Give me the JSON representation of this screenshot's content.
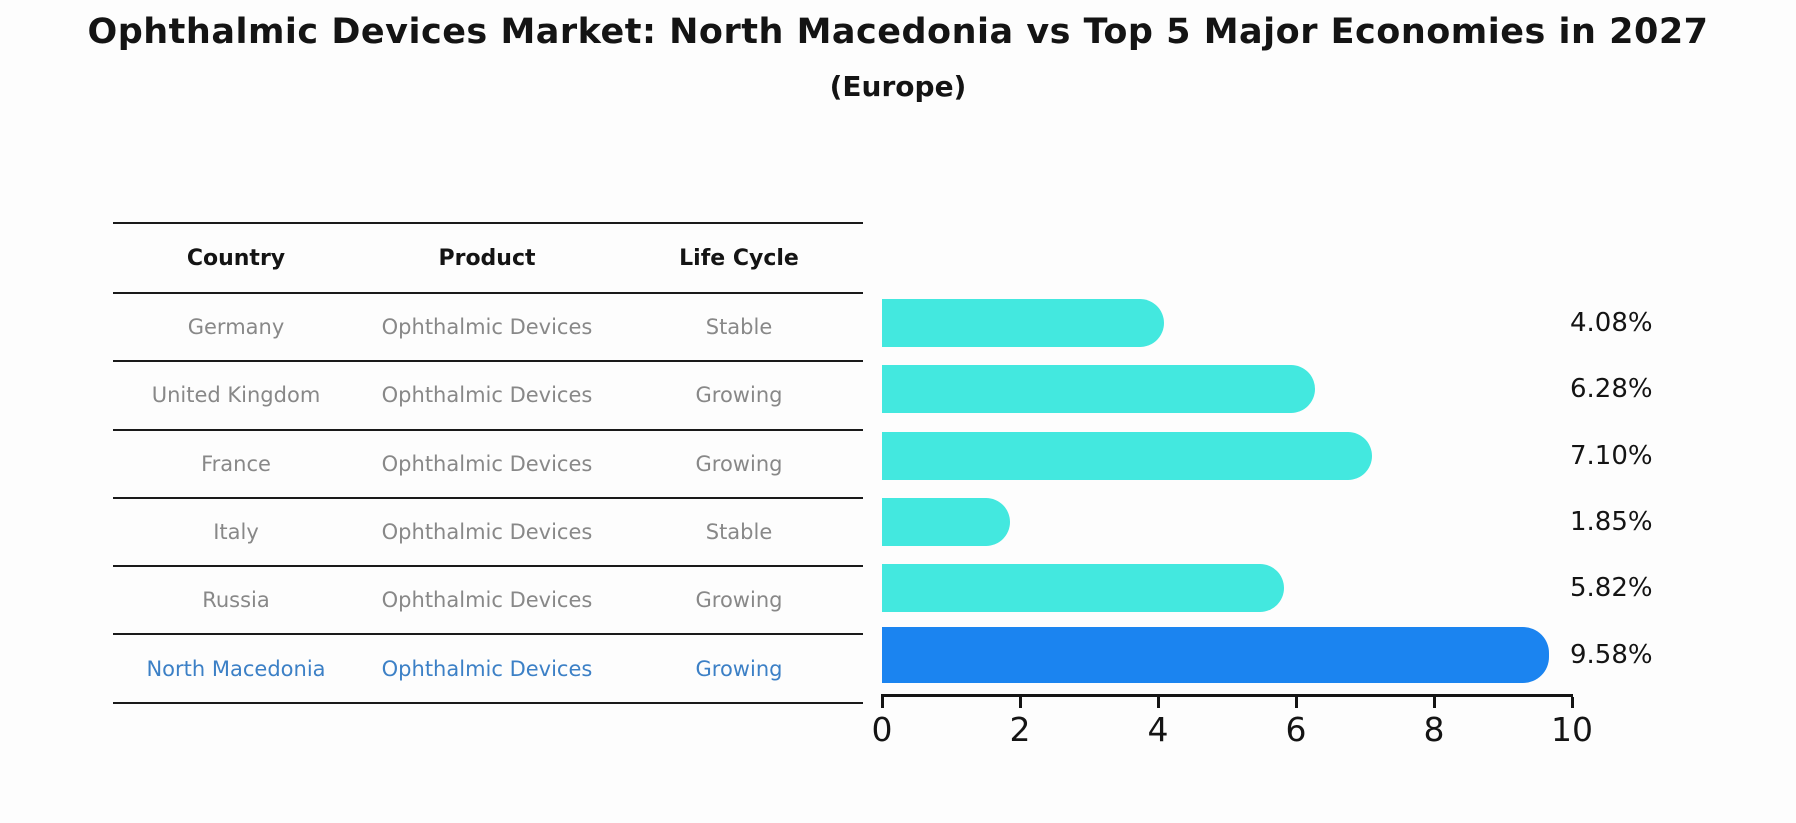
{
  "chart_data": {
    "type": "bar",
    "orientation": "horizontal",
    "title": "Ophthalmic Devices Market: North Macedonia vs Top 5 Major Economies in 2027",
    "subtitle": "(Europe)",
    "categories": [
      "Germany",
      "United Kingdom",
      "France",
      "Italy",
      "Russia",
      "North Macedonia"
    ],
    "values": [
      4.08,
      6.28,
      7.1,
      1.85,
      5.82,
      9.58
    ],
    "value_labels": [
      "4.08%",
      "6.28%",
      "7.10%",
      "1.85%",
      "5.82%",
      "9.58%"
    ],
    "xlim": [
      0,
      10
    ],
    "x_ticks": [
      "0",
      "2",
      "4",
      "6",
      "8",
      "10"
    ],
    "highlight_index": 5,
    "bar_color": "#43e8df",
    "highlight_bar_color": "#1b84f0",
    "highlight_text_color": "#3c80c6",
    "grid": false,
    "legend": false
  },
  "table": {
    "headers": [
      "Country",
      "Product",
      "Life Cycle"
    ],
    "rows": [
      {
        "country": "Germany",
        "product": "Ophthalmic Devices",
        "life_cycle": "Stable",
        "highlight": false
      },
      {
        "country": "United Kingdom",
        "product": "Ophthalmic Devices",
        "life_cycle": "Growing",
        "highlight": false
      },
      {
        "country": "France",
        "product": "Ophthalmic Devices",
        "life_cycle": "Growing",
        "highlight": false
      },
      {
        "country": "Italy",
        "product": "Ophthalmic Devices",
        "life_cycle": "Stable",
        "highlight": false
      },
      {
        "country": "Russia",
        "product": "Ophthalmic Devices",
        "life_cycle": "Growing",
        "highlight": false
      },
      {
        "country": "North Macedonia",
        "product": "Ophthalmic Devices",
        "life_cycle": "Growing",
        "highlight": true
      }
    ]
  }
}
